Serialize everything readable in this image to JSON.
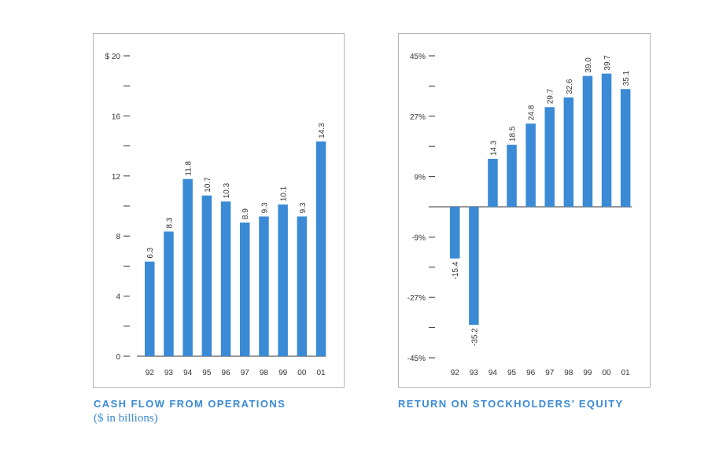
{
  "colors": {
    "bar": "#3a8ad5",
    "axis": "#333333",
    "frame": "#b5b5b5",
    "title": "#3a8ad5"
  },
  "chart_data": [
    {
      "type": "bar",
      "title": "CASH FLOW FROM OPERATIONS",
      "subtitle": "($ in billions)",
      "categories": [
        "92",
        "93",
        "94",
        "95",
        "96",
        "97",
        "98",
        "99",
        "00",
        "01"
      ],
      "values": [
        6.3,
        8.3,
        11.8,
        10.7,
        10.3,
        8.9,
        9.3,
        10.1,
        9.3,
        14.3
      ],
      "value_labels": [
        "6.3",
        "8.3",
        "11.8",
        "10.7",
        "10.3",
        "8.9",
        "9.3",
        "10.1",
        "9.3",
        "14.3"
      ],
      "ylim": [
        0,
        20
      ],
      "yticks": [
        0,
        4,
        8,
        12,
        16,
        20
      ],
      "ytick_labels": [
        "0",
        "4",
        "8",
        "12",
        "16",
        "$ 20"
      ],
      "minor_yticks": [
        2,
        6,
        10,
        14,
        18
      ]
    },
    {
      "type": "bar",
      "title": "RETURN ON STOCKHOLDERS’ EQUITY",
      "categories": [
        "92",
        "93",
        "94",
        "95",
        "96",
        "97",
        "98",
        "99",
        "00",
        "01"
      ],
      "values": [
        -15.4,
        -35.2,
        14.3,
        18.5,
        24.8,
        29.7,
        32.6,
        39.0,
        39.7,
        35.1
      ],
      "value_labels": [
        "-15.4",
        "-35.2",
        "14.3",
        "18.5",
        "24.8",
        "29.7",
        "32.6",
        "39.0",
        "39.7",
        "35.1"
      ],
      "ylim": [
        -45,
        45
      ],
      "yticks": [
        -45,
        -27,
        -9,
        9,
        27,
        45
      ],
      "ytick_labels": [
        "-45%",
        "-27%",
        "-9%",
        "9%",
        "27%",
        "45%"
      ],
      "minor_yticks": [
        -36,
        -18,
        18,
        36
      ]
    }
  ]
}
